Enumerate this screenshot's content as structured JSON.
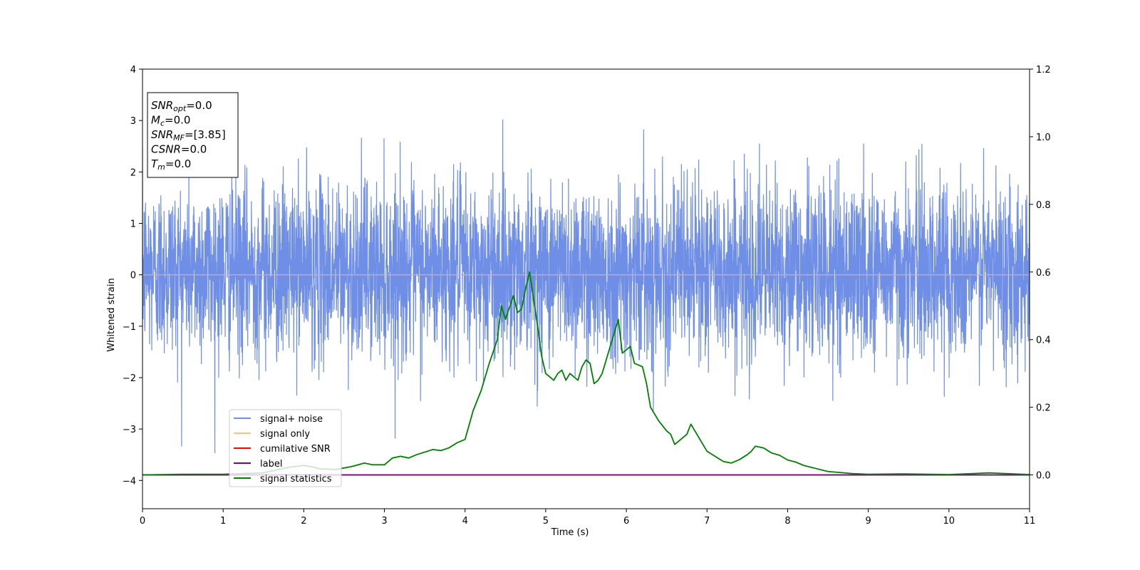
{
  "chart_data": {
    "type": "line",
    "title": "",
    "xlabel": "Time (s)",
    "ylabel": "Whitened strain",
    "y2label": "",
    "xlim": [
      0,
      11
    ],
    "ylim": [
      -4.55,
      4.0
    ],
    "y2lim": [
      -0.1,
      1.2
    ],
    "xticks": [
      "0",
      "1",
      "2",
      "3",
      "4",
      "5",
      "6",
      "7",
      "8",
      "9",
      "10",
      "11"
    ],
    "yticks": [
      "4",
      "3",
      "2",
      "1",
      "0",
      "−1",
      "−2",
      "−3",
      "−4"
    ],
    "yticks_values": [
      4,
      3,
      2,
      1,
      0,
      -1,
      -2,
      -3,
      -4
    ],
    "y2ticks": [
      "1.2",
      "1.0",
      "0.8",
      "0.6",
      "0.4",
      "0.2",
      "0.0"
    ],
    "y2ticks_values": [
      1.2,
      1.0,
      0.8,
      0.6,
      0.4,
      0.2,
      0.0
    ],
    "grid": false,
    "legend_position": "lower-left",
    "colors": {
      "signal_noise": "#6f8ee6",
      "signal_only": "#ffc870",
      "cumulative_snr": "#ff0000",
      "label": "#800080",
      "signal_statistics": "#008000",
      "zero_line": "#c8b38a"
    },
    "series": [
      {
        "name": "signal+ noise",
        "axis": "left",
        "description_values": "dense noise, approx range -3.6 to 3.6, bulk within -1.6 to 1.8",
        "noise_std": 0.85,
        "sample_rate_hz": 400
      },
      {
        "name": "signal only",
        "axis": "left",
        "x": [
          0,
          11
        ],
        "y": [
          0,
          0
        ]
      },
      {
        "name": "cumilative SNR",
        "axis": "right",
        "x": [
          0,
          11
        ],
        "y": [
          0,
          0
        ]
      },
      {
        "name": "label",
        "axis": "right",
        "x": [
          0,
          11
        ],
        "y": [
          0,
          0
        ]
      },
      {
        "name": "signal statistics",
        "axis": "right",
        "x": [
          0.0,
          0.5,
          1.0,
          1.5,
          1.8,
          2.0,
          2.1,
          2.2,
          2.4,
          2.6,
          2.75,
          2.85,
          3.0,
          3.1,
          3.2,
          3.3,
          3.4,
          3.6,
          3.7,
          3.8,
          3.9,
          4.0,
          4.1,
          4.2,
          4.3,
          4.4,
          4.45,
          4.5,
          4.6,
          4.65,
          4.7,
          4.75,
          4.8,
          4.85,
          4.9,
          4.95,
          5.0,
          5.1,
          5.15,
          5.2,
          5.25,
          5.3,
          5.4,
          5.45,
          5.5,
          5.55,
          5.6,
          5.65,
          5.7,
          5.8,
          5.85,
          5.9,
          5.95,
          6.0,
          6.05,
          6.1,
          6.2,
          6.25,
          6.3,
          6.4,
          6.5,
          6.55,
          6.6,
          6.7,
          6.75,
          6.8,
          6.85,
          6.9,
          7.0,
          7.2,
          7.3,
          7.4,
          7.5,
          7.55,
          7.6,
          7.7,
          7.8,
          7.9,
          8.0,
          8.1,
          8.2,
          8.3,
          8.5,
          8.8,
          9.0,
          9.4,
          10.0,
          10.3,
          10.5,
          10.7,
          11.0
        ],
        "y": [
          0.0,
          0.002,
          0.002,
          0.006,
          0.022,
          0.028,
          0.024,
          0.018,
          0.016,
          0.025,
          0.035,
          0.03,
          0.03,
          0.05,
          0.055,
          0.05,
          0.06,
          0.075,
          0.072,
          0.08,
          0.095,
          0.105,
          0.19,
          0.25,
          0.33,
          0.4,
          0.5,
          0.46,
          0.53,
          0.48,
          0.49,
          0.55,
          0.6,
          0.52,
          0.44,
          0.35,
          0.3,
          0.28,
          0.3,
          0.31,
          0.28,
          0.3,
          0.28,
          0.32,
          0.34,
          0.33,
          0.27,
          0.28,
          0.3,
          0.38,
          0.42,
          0.46,
          0.36,
          0.37,
          0.38,
          0.33,
          0.32,
          0.27,
          0.2,
          0.16,
          0.13,
          0.12,
          0.09,
          0.11,
          0.12,
          0.15,
          0.13,
          0.11,
          0.07,
          0.04,
          0.035,
          0.045,
          0.06,
          0.07,
          0.085,
          0.08,
          0.065,
          0.058,
          0.044,
          0.038,
          0.028,
          0.022,
          0.01,
          0.004,
          0.002,
          0.003,
          0.001,
          0.004,
          0.006,
          0.004,
          0.001
        ]
      }
    ],
    "stats_box": {
      "position": "top-left",
      "lines": [
        {
          "name": "SNR",
          "sub": "opt",
          "value": "=0.0"
        },
        {
          "name": "M",
          "sub": "c",
          "value": "=0.0"
        },
        {
          "name": "SNR",
          "sub": "MF",
          "value": "=[3.85]"
        },
        {
          "name": "CSNR",
          "sub": "",
          "value": "=0.0"
        },
        {
          "name": "T",
          "sub": "m",
          "value": "=0.0"
        }
      ]
    }
  }
}
